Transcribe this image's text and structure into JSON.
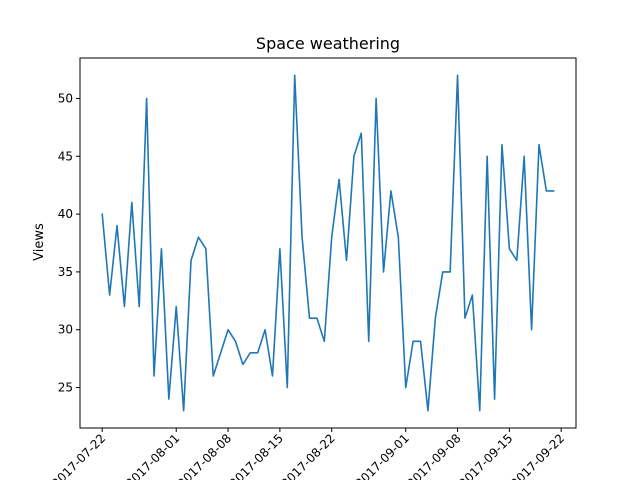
{
  "chart_data": {
    "type": "line",
    "title": "Space weathering",
    "xlabel": "",
    "ylabel": "Views",
    "x_tick_labels": [
      "2017-07-22",
      "2017-08-01",
      "2017-08-08",
      "2017-08-15",
      "2017-08-22",
      "2017-09-01",
      "2017-09-08",
      "2017-09-15",
      "2017-09-22"
    ],
    "y_ticks": [
      25,
      30,
      35,
      40,
      45,
      50
    ],
    "xlim": [
      "2017-07-19",
      "2017-09-24"
    ],
    "ylim": [
      21.5,
      53.5
    ],
    "grid": false,
    "color": "#1f77b4",
    "x": [
      "2017-07-22",
      "2017-07-23",
      "2017-07-24",
      "2017-07-25",
      "2017-07-26",
      "2017-07-27",
      "2017-07-28",
      "2017-07-29",
      "2017-07-30",
      "2017-07-31",
      "2017-08-01",
      "2017-08-02",
      "2017-08-03",
      "2017-08-04",
      "2017-08-05",
      "2017-08-06",
      "2017-08-07",
      "2017-08-08",
      "2017-08-09",
      "2017-08-10",
      "2017-08-11",
      "2017-08-12",
      "2017-08-13",
      "2017-08-14",
      "2017-08-15",
      "2017-08-16",
      "2017-08-17",
      "2017-08-18",
      "2017-08-19",
      "2017-08-20",
      "2017-08-21",
      "2017-08-22",
      "2017-08-23",
      "2017-08-24",
      "2017-08-25",
      "2017-08-26",
      "2017-08-27",
      "2017-08-28",
      "2017-08-29",
      "2017-08-30",
      "2017-08-31",
      "2017-09-01",
      "2017-09-02",
      "2017-09-03",
      "2017-09-04",
      "2017-09-05",
      "2017-09-06",
      "2017-09-07",
      "2017-09-08",
      "2017-09-09",
      "2017-09-10",
      "2017-09-11",
      "2017-09-12",
      "2017-09-13",
      "2017-09-14",
      "2017-09-15",
      "2017-09-16",
      "2017-09-17",
      "2017-09-18",
      "2017-09-19",
      "2017-09-20",
      "2017-09-21"
    ],
    "series": [
      {
        "values": [
          40,
          33,
          39,
          32,
          41,
          32,
          50,
          26,
          37,
          24,
          32,
          23,
          36,
          38,
          37,
          26,
          28,
          30,
          29,
          27,
          28,
          28,
          30,
          26,
          37,
          25,
          52,
          38,
          31,
          31,
          29,
          38,
          43,
          36,
          45,
          47,
          29,
          50,
          35,
          42,
          38,
          25,
          29,
          29,
          23,
          31,
          35,
          35,
          52,
          31,
          33,
          23,
          45,
          24,
          46,
          37,
          36,
          45,
          30,
          46,
          42,
          42
        ]
      }
    ]
  }
}
